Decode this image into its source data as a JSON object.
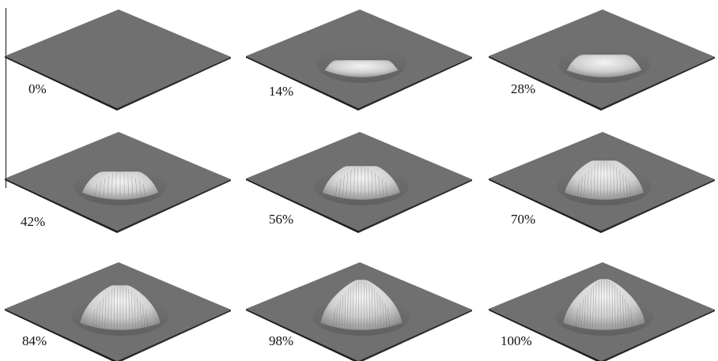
{
  "figure": {
    "panels": [
      {
        "label": "0%",
        "progress": 0.0
      },
      {
        "label": "14%",
        "progress": 0.14
      },
      {
        "label": "28%",
        "progress": 0.28
      },
      {
        "label": "42%",
        "progress": 0.42
      },
      {
        "label": "56%",
        "progress": 0.56
      },
      {
        "label": "70%",
        "progress": 0.7
      },
      {
        "label": "84%",
        "progress": 0.84
      },
      {
        "label": "98%",
        "progress": 0.98
      },
      {
        "label": "100%",
        "progress": 1.0
      }
    ],
    "colors": {
      "plate_top": "#707070",
      "plate_edge": "#1e1e1e",
      "bump_light": "#f2f2f2",
      "bump_dark": "#9a9a9a"
    }
  }
}
